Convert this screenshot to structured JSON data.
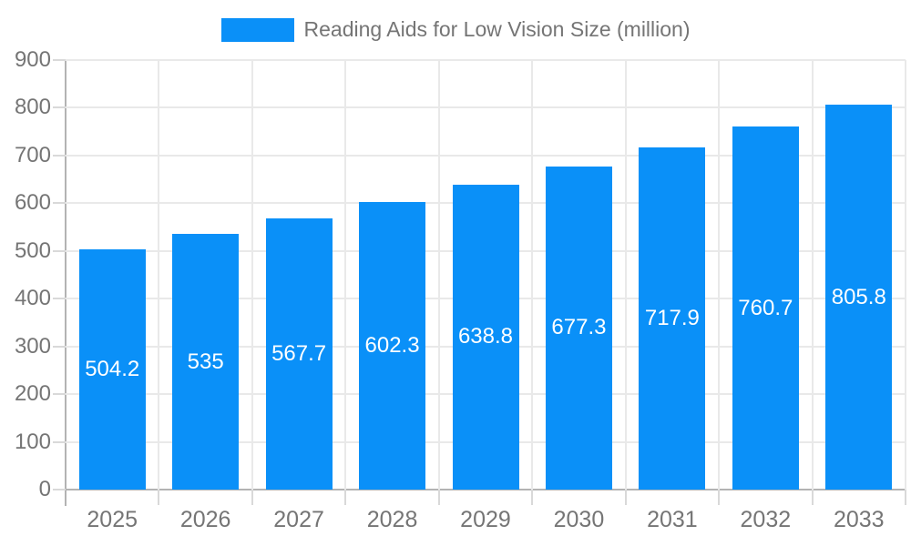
{
  "chart_data": {
    "type": "bar",
    "title": "Reading Aids for Low Vision Size (million)",
    "legend": [
      "Reading Aids for Low Vision Size (million)"
    ],
    "legend_position": "top-center",
    "categories": [
      "2025",
      "2026",
      "2027",
      "2028",
      "2029",
      "2030",
      "2031",
      "2032",
      "2033"
    ],
    "series": [
      {
        "name": "Reading Aids for Low Vision Size (million)",
        "values": [
          504.2,
          535,
          567.7,
          602.3,
          638.8,
          677.3,
          717.9,
          760.7,
          805.8
        ]
      }
    ],
    "value_labels": [
      "504.2",
      "535",
      "567.7",
      "602.3",
      "638.8",
      "677.3",
      "717.9",
      "760.7",
      "805.8"
    ],
    "xlabel": "",
    "ylabel": "",
    "ylim": [
      0,
      900
    ],
    "ytick_step": 100,
    "yticks": [
      0,
      100,
      200,
      300,
      400,
      500,
      600,
      700,
      800,
      900
    ],
    "grid": true,
    "colors": {
      "bar": "#0a90f8",
      "value_label": "#ffffff",
      "axis_text": "#757575",
      "gridline": "#e9e9e9",
      "axis_line": "#b3b3b3",
      "tick": "#d9d9d9"
    }
  }
}
